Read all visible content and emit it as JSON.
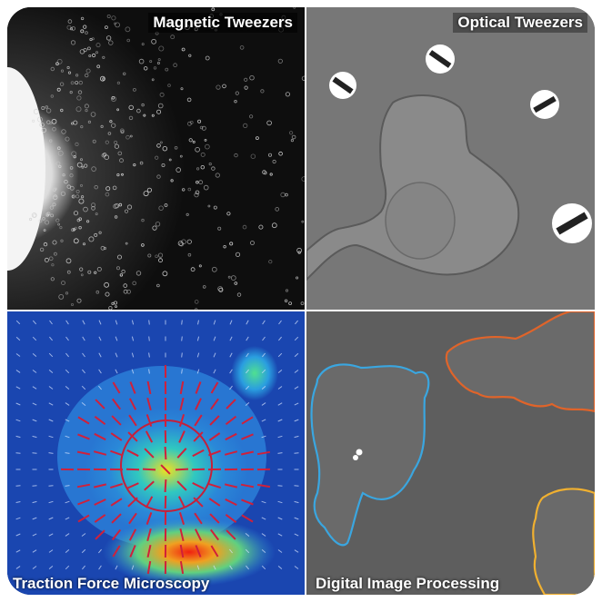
{
  "panels": {
    "top_left": {
      "label": "Magnetic Tweezers"
    },
    "top_right": {
      "label": "Optical Tweezers"
    },
    "bottom_left": {
      "label": "Traction Force Microscopy"
    },
    "bottom_right": {
      "label": "Digital Image Processing"
    }
  },
  "colors": {
    "outline_blue": "#3aa6e0",
    "outline_orange": "#e0642a",
    "outline_yellow": "#f0b030",
    "force_arrows": "#d0203a"
  }
}
